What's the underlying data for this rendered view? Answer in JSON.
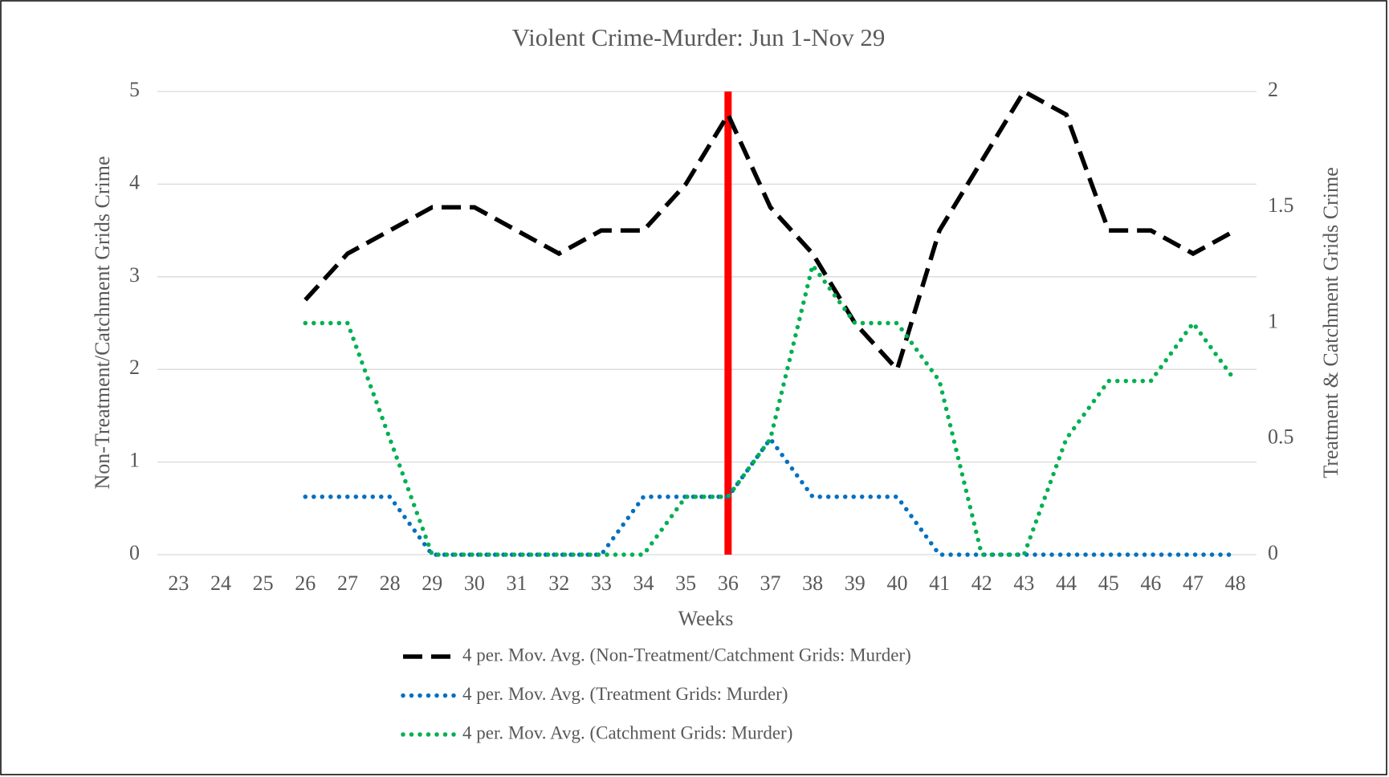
{
  "chart_data": {
    "type": "line",
    "title": "Violent Crime-Murder: Jun 1-Nov 29",
    "x_label": "Weeks",
    "y_label": "Non-Treatment/Catchment Grids Crime",
    "y2_label": "Treatment & Catchment Grids Crime",
    "categories": [
      "23",
      "24",
      "25",
      "26",
      "27",
      "28",
      "29",
      "30",
      "31",
      "32",
      "33",
      "34",
      "35",
      "36",
      "37",
      "38",
      "39",
      "40",
      "41",
      "42",
      "43",
      "44",
      "45",
      "46",
      "47",
      "48"
    ],
    "ylim": [
      0,
      5
    ],
    "yticks": [
      0,
      1,
      2,
      3,
      4,
      5
    ],
    "y2lim": [
      0,
      2
    ],
    "y2ticks": [
      0,
      0.5,
      1,
      1.5,
      2
    ],
    "grid": true,
    "legend": "bottom",
    "marker_line": {
      "category": "36",
      "color": "#ff0000"
    },
    "series": [
      {
        "name": "4 per. Mov. Avg. (Non-Treatment/Catchment Grids: Murder)",
        "color": "#000000",
        "style": "dashed",
        "axis": "y",
        "values": [
          null,
          null,
          null,
          2.75,
          3.25,
          3.5,
          3.75,
          3.75,
          3.5,
          3.25,
          3.5,
          3.5,
          4,
          4.75,
          3.75,
          3.25,
          2.5,
          2,
          3.5,
          4.25,
          5,
          4.75,
          3.5,
          3.5,
          3.25,
          3.5
        ]
      },
      {
        "name": "4 per. Mov. Avg. (Treatment Grids: Murder)",
        "color": "#0070c0",
        "style": "dotted",
        "axis": "y2",
        "values": [
          null,
          null,
          null,
          0.25,
          0.25,
          0.25,
          0,
          0,
          0,
          0,
          0,
          0.25,
          0.25,
          0.25,
          0.5,
          0.25,
          0.25,
          0.25,
          0,
          0,
          0,
          0,
          0,
          0,
          0,
          0
        ]
      },
      {
        "name": "4 per. Mov. Avg. (Catchment Grids: Murder)",
        "color": "#00b050",
        "style": "dotted",
        "axis": "y2",
        "values": [
          null,
          null,
          null,
          1,
          1,
          0.5,
          0,
          0,
          0,
          0,
          0,
          0,
          0.25,
          0.25,
          0.5,
          1.25,
          1,
          1,
          0.75,
          0,
          0,
          0.5,
          0.75,
          0.75,
          1,
          0.75
        ]
      }
    ]
  }
}
